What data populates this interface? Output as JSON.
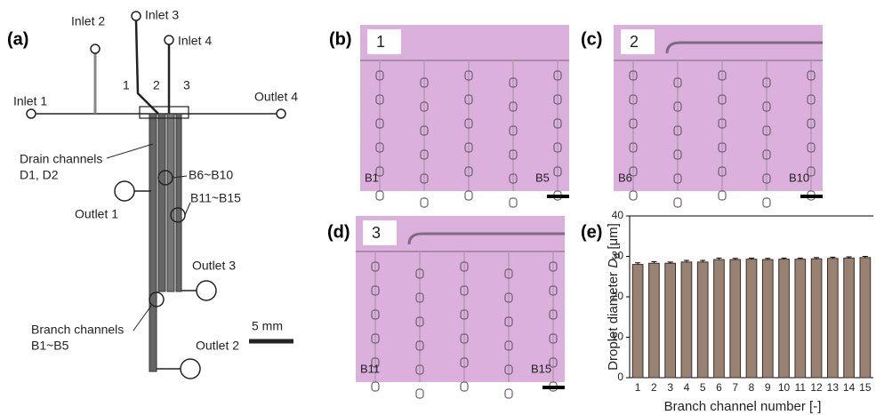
{
  "panel_a": {
    "label": "(a)",
    "inlet_1": "Inlet 1",
    "inlet_2": "Inlet 2",
    "inlet_3": "Inlet 3",
    "inlet_4": "Inlet 4",
    "channel_1": "1",
    "channel_2": "2",
    "channel_3": "3",
    "outlet_4": "Outlet 4",
    "drain_channels": "Drain channels",
    "drain_ids": "D1, D2",
    "group_2": "B6~B10",
    "outlet_1": "Outlet 1",
    "group_3": "B11~B15",
    "outlet_3": "Outlet 3",
    "branch_channels": "Branch channels",
    "group_1": "B1~B5",
    "scale": "5 mm",
    "outlet_2": "Outlet 2"
  },
  "micrographs": [
    {
      "label": "(b)",
      "number": "1",
      "first": "B1",
      "last": "B5"
    },
    {
      "label": "(c)",
      "number": "2",
      "first": "B6",
      "last": "B10"
    },
    {
      "label": "(d)",
      "number": "3",
      "first": "B11",
      "last": "B15"
    }
  ],
  "chart_data": {
    "type": "bar",
    "label": "(e)",
    "y_label": "Droplet diameter ",
    "y_label_symbol": "D",
    "y_label_subscript": "d",
    "y_label_unit": " [μm]",
    "x_label": "Branch channel number [-]",
    "categories": [
      "1",
      "2",
      "3",
      "4",
      "5",
      "6",
      "7",
      "8",
      "9",
      "10",
      "11",
      "12",
      "13",
      "14",
      "15"
    ],
    "values": [
      28.0,
      28.3,
      28.3,
      28.6,
      28.6,
      29.2,
      29.2,
      29.3,
      29.2,
      29.3,
      29.3,
      29.4,
      29.5,
      29.6,
      29.7
    ],
    "errors": [
      0.4,
      0.4,
      0.3,
      0.4,
      0.4,
      0.4,
      0.3,
      0.3,
      0.3,
      0.3,
      0.3,
      0.3,
      0.3,
      0.3,
      0.3
    ],
    "color": "#9a8273",
    "ylim": [
      0,
      40
    ],
    "yticks": [
      0,
      10,
      20,
      30,
      40
    ]
  }
}
